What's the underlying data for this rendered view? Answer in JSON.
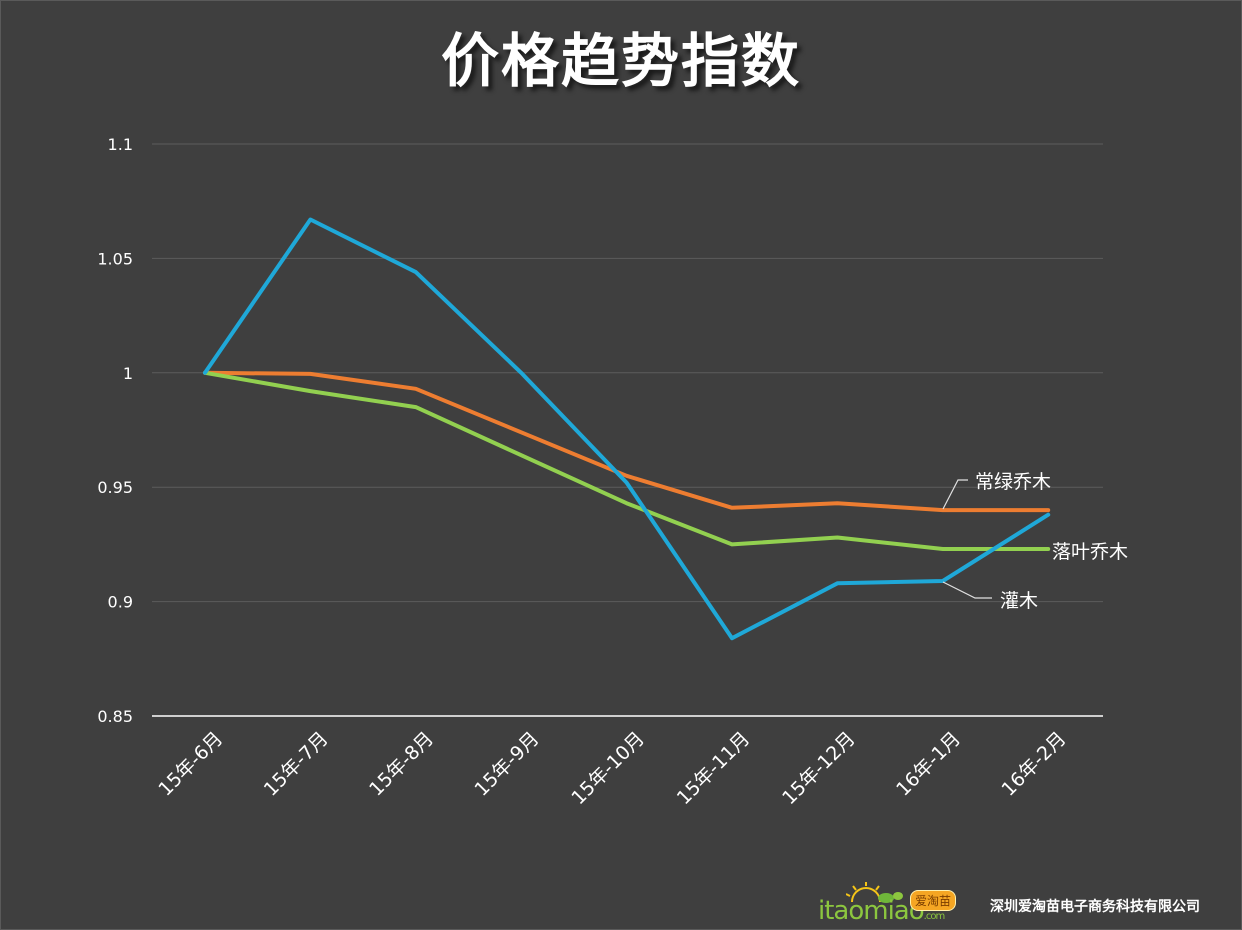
{
  "title": "价格趋势指数",
  "footer": {
    "logo_text": "itaomiao",
    "logo_suffix": ".com",
    "logo_badge": "爱淘苗",
    "company": "深圳爱淘苗电子商务科技有限公司"
  },
  "chart_data": {
    "type": "line",
    "title": "价格趋势指数",
    "xlabel": "",
    "ylabel": "",
    "ylim": [
      0.85,
      1.1
    ],
    "yticks": [
      "0.85",
      "0.9",
      "0.95",
      "1",
      "1.05",
      "1.1"
    ],
    "grid": true,
    "legend_position": "inline-right-labels",
    "categories": [
      "15年-6月",
      "15年-7月",
      "15年-8月",
      "15年-9月",
      "15年-10月",
      "15年-11月",
      "15年-12月",
      "16年-1月",
      "16年-2月"
    ],
    "series": [
      {
        "name": "常绿乔木",
        "color": "#ed7d31",
        "values": [
          1.0,
          0.9995,
          0.993,
          0.974,
          0.955,
          0.941,
          0.943,
          0.94,
          0.94
        ]
      },
      {
        "name": "落叶乔木",
        "color": "#92d050",
        "values": [
          1.0,
          0.992,
          0.985,
          0.964,
          0.943,
          0.925,
          0.928,
          0.923,
          0.923
        ]
      },
      {
        "name": "灌木",
        "color": "#1fa8d8",
        "values": [
          1.0,
          1.067,
          1.044,
          1.0,
          0.952,
          0.884,
          0.908,
          0.909,
          0.938
        ]
      }
    ]
  }
}
